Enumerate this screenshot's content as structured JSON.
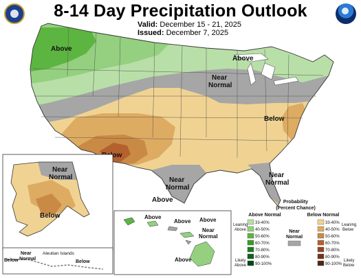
{
  "header": {
    "title": "8-14 Day Precipitation Outlook",
    "valid_label": "Valid:",
    "valid_value": "December 15 - 21, 2025",
    "issued_label": "Issued:",
    "issued_value": "December 7, 2025"
  },
  "logos": {
    "left": "doc-seal-icon",
    "right": "noaa-logo-icon"
  },
  "map_labels": {
    "above_northwest": "Above",
    "above_great_lakes": "Above",
    "near_normal_midwest_line1": "Near",
    "near_normal_midwest_line2": "Normal",
    "below_southwest": "Below",
    "below_southeast": "Below",
    "near_normal_texas_line1": "Near",
    "near_normal_texas_line2": "Normal",
    "above_texas": "Above",
    "near_normal_florida_line1": "Near",
    "near_normal_florida_line2": "Normal"
  },
  "alaska_labels": {
    "near_normal_line1": "Near",
    "near_normal_line2": "Normal",
    "below_south": "Below",
    "aleutian_title": "Aleutian Islands",
    "aleutian_below_left": "Below",
    "aleutian_near_line1": "Near",
    "aleutian_near_line2": "Normal",
    "aleutian_below_right": "Below"
  },
  "hawaii_labels": {
    "above_kauai": "Above",
    "above_oahu": "Above",
    "above_maui": "Above",
    "near_normal_line1": "Near",
    "near_normal_line2": "Normal",
    "above_big_island": "Above"
  },
  "legend": {
    "title_line1": "Probability",
    "title_line2": "(Percent Chance)",
    "above_header": "Above Normal",
    "below_header": "Below Normal",
    "near_header_line1": "Near",
    "near_header_line2": "Normal",
    "leaning_above_line1": "Leaning",
    "leaning_above_line2": "Above",
    "likely_above_line1": "Likely",
    "likely_above_line2": "Above",
    "leaning_below_line1": "Leaning",
    "leaning_below_line2": "Below",
    "likely_below_line1": "Likely",
    "likely_below_line2": "Below",
    "above_bins": [
      {
        "label": "33-40%",
        "color": "#b8dfa8"
      },
      {
        "label": "40-50%",
        "color": "#94d07f"
      },
      {
        "label": "50-60%",
        "color": "#5cb540"
      },
      {
        "label": "60-70%",
        "color": "#3a9a2a"
      },
      {
        "label": "70-80%",
        "color": "#217a1f"
      },
      {
        "label": "80-90%",
        "color": "#11611a"
      },
      {
        "label": "90-100%",
        "color": "#064714"
      }
    ],
    "below_bins": [
      {
        "label": "33-40%",
        "color": "#f0d392"
      },
      {
        "label": "40-50%",
        "color": "#deab62"
      },
      {
        "label": "50-60%",
        "color": "#c98a45"
      },
      {
        "label": "60-70%",
        "color": "#b4602f"
      },
      {
        "label": "70-80%",
        "color": "#944424"
      },
      {
        "label": "80-90%",
        "color": "#74311c"
      },
      {
        "label": "90-100%",
        "color": "#552313"
      }
    ],
    "near_color": "#a6a6a6"
  },
  "colors": {
    "near_normal": "#a6a6a6",
    "water": "#ffffff",
    "border": "#333333"
  }
}
